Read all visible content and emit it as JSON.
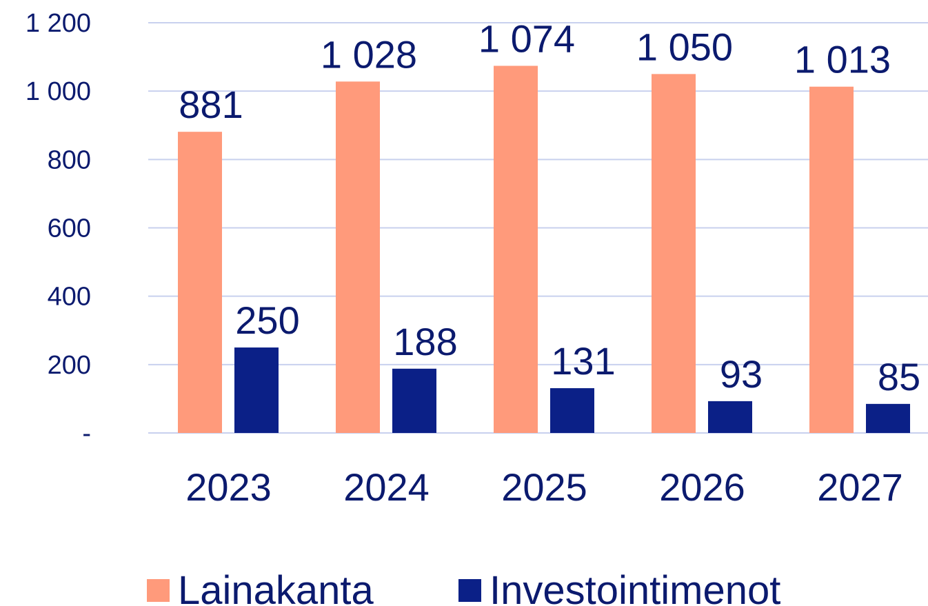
{
  "chart_data": {
    "type": "bar",
    "categories": [
      "2023",
      "2024",
      "2025",
      "2026",
      "2027"
    ],
    "series": [
      {
        "name": "Lainakanta",
        "color": "#ff9a7b",
        "values": [
          881,
          1028,
          1074,
          1050,
          1013
        ],
        "value_labels": [
          "881",
          "1 028",
          "1 074",
          "1 050",
          "1 013"
        ]
      },
      {
        "name": "Investointimenot",
        "color": "#0b2087",
        "values": [
          250,
          188,
          131,
          93,
          85
        ]
      }
    ],
    "ylim": [
      0,
      1200
    ],
    "yticks": [
      {
        "value": 0,
        "label": "-"
      },
      200,
      400,
      600,
      800,
      {
        "value": 1000,
        "label": "1 000"
      },
      {
        "value": 1200,
        "label": "1 200"
      }
    ],
    "grid": true,
    "legend": "bottom"
  }
}
